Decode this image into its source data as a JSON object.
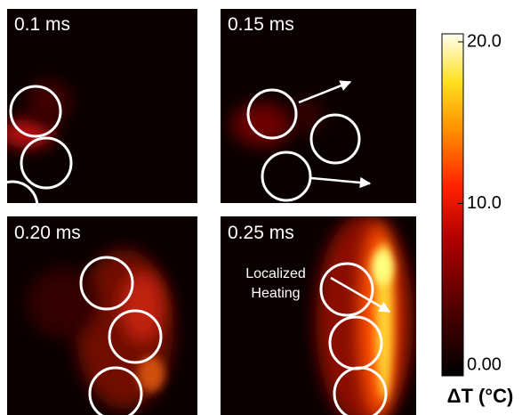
{
  "panels": [
    {
      "label": "0.1 ms"
    },
    {
      "label": "0.15 ms"
    },
    {
      "label": "0.20 ms"
    },
    {
      "label": "0.25 ms",
      "annotation": [
        "Localized",
        "Heating"
      ]
    }
  ],
  "colorbar": {
    "range": [
      0,
      20
    ],
    "ticks": [
      {
        "value": 20,
        "label": "20.0"
      },
      {
        "value": 10,
        "label": "10.0"
      },
      {
        "value": 0,
        "label": "0.00"
      }
    ],
    "label": "ΔT (°C)"
  }
}
